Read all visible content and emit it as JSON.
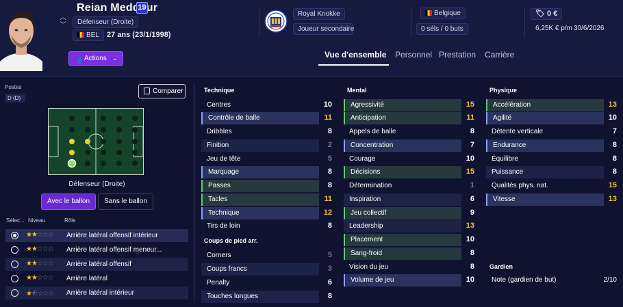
{
  "player": {
    "name": "Reian Meddour",
    "number": "19",
    "position": "Défenseur (Droite)",
    "nationality": "BEL",
    "age_dob": "27 ans (23/1/1998)"
  },
  "club": {
    "name": "Royal Knokke",
    "status": "Joueur secondaire"
  },
  "national": {
    "country": "Belgique",
    "caps_goals": "0 séls / 0 buts"
  },
  "contract": {
    "value": "0 €",
    "wage": "6,25K € p/m",
    "expiry": "30/6/2026"
  },
  "actions_label": "Actions",
  "tabs": [
    "Vue d'ensemble",
    "Personnel",
    "Prestation",
    "Carrière"
  ],
  "left": {
    "positions_label": "Postes",
    "position_value": "D (D)",
    "compare_label": "Comparer",
    "role_caption": "Défenseur (Droite)",
    "with_ball": "Avec le ballon",
    "without_ball": "Sans le ballon",
    "col_select": "Sélec...",
    "col_level": "Niveau",
    "col_role": "Rôle",
    "roles": [
      {
        "name": "Arrière latéral offensif intérieur",
        "stars": 2
      },
      {
        "name": "Arrière latéral offensif meneur...",
        "stars": 2
      },
      {
        "name": "Arrière latéral offensif",
        "stars": 2
      },
      {
        "name": "Arrière latéral",
        "stars": 2
      },
      {
        "name": "Arrière latéral intérieur",
        "stars": 1.5
      }
    ]
  },
  "technique": {
    "title": "Technique",
    "attrs": [
      {
        "name": "Centres",
        "value": "10"
      },
      {
        "name": "Contrôle de balle",
        "value": "11"
      },
      {
        "name": "Dribbles",
        "value": "8"
      },
      {
        "name": "Finition",
        "value": "2"
      },
      {
        "name": "Jeu de tête",
        "value": "5"
      },
      {
        "name": "Marquage",
        "value": "8"
      },
      {
        "name": "Passes",
        "value": "8"
      },
      {
        "name": "Tacles",
        "value": "11"
      },
      {
        "name": "Technique",
        "value": "12"
      },
      {
        "name": "Tirs de loin",
        "value": "8"
      }
    ]
  },
  "set_pieces": {
    "title": "Coups de pied arr.",
    "attrs": [
      {
        "name": "Corners",
        "value": "5"
      },
      {
        "name": "Coups francs",
        "value": "3"
      },
      {
        "name": "Penalty",
        "value": "6"
      },
      {
        "name": "Touches longues",
        "value": "8"
      }
    ]
  },
  "mental": {
    "title": "Mental",
    "attrs": [
      {
        "name": "Agressivité",
        "value": "15"
      },
      {
        "name": "Anticipation",
        "value": "11"
      },
      {
        "name": "Appels de balle",
        "value": "8"
      },
      {
        "name": "Concentration",
        "value": "7"
      },
      {
        "name": "Courage",
        "value": "10"
      },
      {
        "name": "Décisions",
        "value": "15"
      },
      {
        "name": "Détermination",
        "value": "1"
      },
      {
        "name": "Inspiration",
        "value": "6"
      },
      {
        "name": "Jeu collectif",
        "value": "9"
      },
      {
        "name": "Leadership",
        "value": "13"
      },
      {
        "name": "Placement",
        "value": "10"
      },
      {
        "name": "Sang-froid",
        "value": "8"
      },
      {
        "name": "Vision du jeu",
        "value": "8"
      },
      {
        "name": "Volume de jeu",
        "value": "10"
      }
    ]
  },
  "physique": {
    "title": "Physique",
    "attrs": [
      {
        "name": "Accélération",
        "value": "13"
      },
      {
        "name": "Agilité",
        "value": "10"
      },
      {
        "name": "Détente verticale",
        "value": "7"
      },
      {
        "name": "Endurance",
        "value": "8"
      },
      {
        "name": "Équilibre",
        "value": "8"
      },
      {
        "name": "Puissance",
        "value": "8"
      },
      {
        "name": "Qualités phys. nat.",
        "value": "15"
      },
      {
        "name": "Vitesse",
        "value": "13"
      }
    ]
  },
  "goalkeeper": {
    "title": "Gardien",
    "label": "Note (gardien de but)",
    "value": "2/10"
  },
  "colors": {
    "accent": "#7b2fe0",
    "highlight_yellow": "#f4c02b",
    "background": "#0f1330"
  }
}
